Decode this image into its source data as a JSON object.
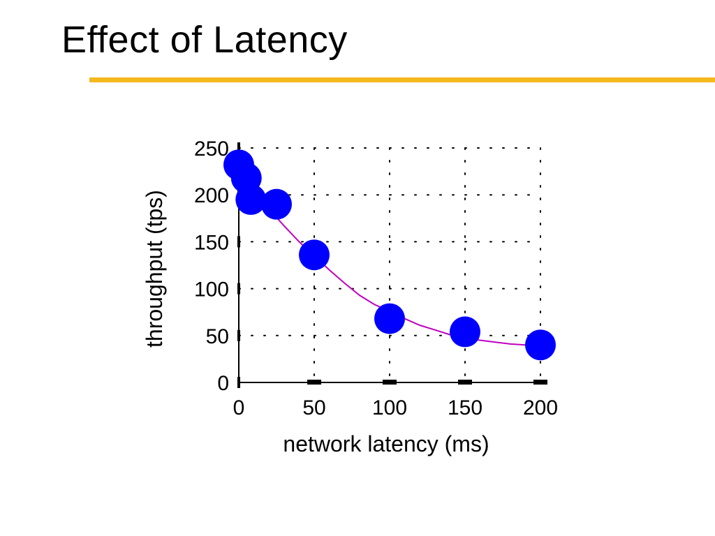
{
  "slide": {
    "title": "Effect of Latency",
    "accent_color": "#F4B81C"
  },
  "chart_data": {
    "type": "scatter",
    "title": "",
    "xlabel": "network latency (ms)",
    "ylabel": "throughput (tps)",
    "xlim": [
      0,
      200
    ],
    "ylim": [
      0,
      250
    ],
    "x_ticks": [
      0,
      50,
      100,
      150,
      200
    ],
    "y_ticks": [
      0,
      50,
      100,
      150,
      200,
      250
    ],
    "x_tick_labels": [
      "0",
      "50",
      "100",
      "150",
      "200"
    ],
    "y_tick_labels": [
      "0",
      "50",
      "100",
      "150",
      "200",
      "250"
    ],
    "grid": "dotted",
    "legend": "none",
    "series": [
      {
        "kind": "points",
        "color": "#0000FF",
        "x": [
          0,
          5,
          8,
          25,
          50,
          100,
          150,
          200
        ],
        "y": [
          232,
          218,
          195,
          190,
          136,
          68,
          54,
          40
        ]
      },
      {
        "kind": "fit-line",
        "color": "#C000C0",
        "x": [
          0,
          10,
          20,
          30,
          40,
          50,
          60,
          70,
          80,
          90,
          100,
          110,
          120,
          130,
          140,
          150,
          160,
          170,
          180,
          190,
          200
        ],
        "y": [
          228,
          205,
          185,
          167,
          150,
          135,
          120,
          106,
          93,
          83,
          76,
          68,
          61,
          56,
          51,
          47,
          45,
          43,
          41,
          40,
          40
        ]
      }
    ]
  }
}
